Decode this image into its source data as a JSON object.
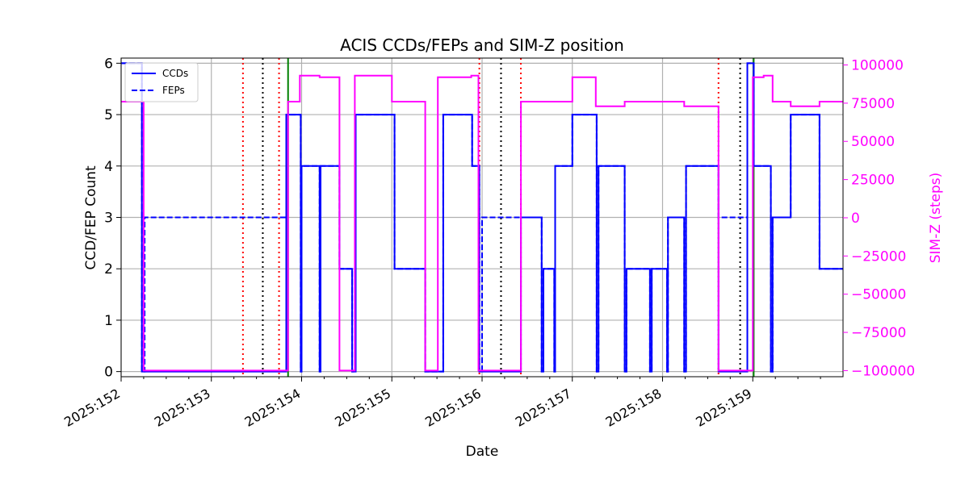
{
  "chart_data": {
    "type": "line",
    "title": "ACIS CCDs/FEPs and SIM-Z position",
    "xlabel": "Date",
    "ylabel": "CCD/FEP Count",
    "y2label": "SIM-Z (steps)",
    "xlim": [
      152.0,
      160.0
    ],
    "ylim": [
      -0.1,
      6.1
    ],
    "y2lim": [
      -104000,
      104500
    ],
    "x_ticks": [
      152,
      153,
      154,
      155,
      156,
      157,
      158,
      159
    ],
    "x_tick_labels": [
      "2025:152",
      "2025:153",
      "2025:154",
      "2025:155",
      "2025:156",
      "2025:157",
      "2025:158",
      "2025:159"
    ],
    "y_ticks": [
      0,
      1,
      2,
      3,
      4,
      5,
      6
    ],
    "y_tick_labels": [
      "0",
      "1",
      "2",
      "3",
      "4",
      "5",
      "6"
    ],
    "y2_ticks": [
      -100000,
      -75000,
      -50000,
      -25000,
      0,
      25000,
      50000,
      75000,
      100000
    ],
    "y2_tick_labels": [
      "−100000",
      "−75000",
      "−50000",
      "−25000",
      "0",
      "25000",
      "50000",
      "75000",
      "100000"
    ],
    "grid": true,
    "legend_position": "top-left",
    "legend": [
      {
        "label": "CCDs",
        "style": "solid",
        "color": "#0000ff"
      },
      {
        "label": "FEPs",
        "style": "dashed",
        "color": "#0000ff"
      }
    ],
    "series": [
      {
        "name": "CCDs",
        "axis": "left",
        "color": "#0000ff",
        "style": "solid",
        "x": [
          152.0,
          152.23,
          152.23,
          153.83,
          153.83,
          153.99,
          153.99,
          154.0,
          154.0,
          154.2,
          154.2,
          154.21,
          154.21,
          154.42,
          154.42,
          154.56,
          154.56,
          154.6,
          154.6,
          155.03,
          155.03,
          155.37,
          155.37,
          155.57,
          155.57,
          155.89,
          155.89,
          155.97,
          155.97,
          156.43,
          156.43,
          156.66,
          156.66,
          156.68,
          156.68,
          156.8,
          156.8,
          156.81,
          156.81,
          157.0,
          157.0,
          157.27,
          157.27,
          157.29,
          157.29,
          157.58,
          157.58,
          157.6,
          157.6,
          157.86,
          157.86,
          157.88,
          157.88,
          158.05,
          158.05,
          158.06,
          158.06,
          158.24,
          158.24,
          158.26,
          158.26,
          158.62,
          158.62,
          158.94,
          158.94,
          159.01,
          159.01,
          159.2,
          159.2,
          159.22,
          159.22,
          159.42,
          159.42,
          159.74,
          159.74,
          160.0
        ],
        "y": [
          6,
          6,
          0,
          0,
          5,
          5,
          0,
          0,
          4,
          4,
          0,
          0,
          4,
          4,
          2,
          2,
          0,
          0,
          5,
          5,
          2,
          2,
          0,
          0,
          5,
          5,
          4,
          4,
          0,
          0,
          3,
          3,
          0,
          0,
          2,
          2,
          0,
          0,
          4,
          4,
          5,
          5,
          0,
          0,
          4,
          4,
          0,
          0,
          2,
          2,
          0,
          0,
          2,
          2,
          0,
          0,
          3,
          3,
          0,
          0,
          4,
          4,
          0,
          0,
          6,
          6,
          4,
          4,
          0,
          0,
          3,
          3,
          5,
          5,
          2,
          2
        ]
      },
      {
        "name": "FEPs",
        "axis": "left",
        "color": "#0000ff",
        "style": "dashed",
        "x": [
          152.0,
          152.23,
          152.23,
          152.26,
          152.26,
          153.83,
          153.83,
          153.99,
          153.99,
          154.0,
          154.0,
          154.2,
          154.2,
          154.21,
          154.21,
          154.42,
          154.42,
          154.56,
          154.56,
          154.6,
          154.6,
          155.03,
          155.03,
          155.37,
          155.37,
          155.57,
          155.57,
          155.89,
          155.89,
          155.97,
          155.97,
          156.0,
          156.0,
          156.66,
          156.66,
          156.68,
          156.68,
          156.8,
          156.8,
          156.81,
          156.81,
          157.0,
          157.0,
          157.27,
          157.27,
          157.29,
          157.29,
          157.58,
          157.58,
          157.6,
          157.6,
          157.86,
          157.86,
          157.88,
          157.88,
          158.05,
          158.05,
          158.06,
          158.06,
          158.24,
          158.24,
          158.26,
          158.26,
          158.62,
          158.62,
          158.94,
          158.94,
          159.01,
          159.01,
          159.2,
          159.2,
          159.22,
          159.22,
          159.42,
          159.42,
          159.74,
          159.74,
          160.0
        ],
        "y": [
          6,
          6,
          0,
          0,
          3,
          3,
          5,
          5,
          0,
          0,
          4,
          4,
          0,
          0,
          4,
          4,
          2,
          2,
          0,
          0,
          5,
          5,
          2,
          2,
          0,
          0,
          5,
          5,
          4,
          4,
          0,
          0,
          3,
          3,
          0,
          0,
          2,
          2,
          0,
          0,
          4,
          4,
          5,
          5,
          0,
          0,
          4,
          4,
          0,
          0,
          2,
          2,
          0,
          0,
          2,
          2,
          0,
          0,
          3,
          3,
          0,
          0,
          4,
          4,
          3,
          3,
          6,
          6,
          4,
          4,
          0,
          0,
          3,
          3,
          5,
          5,
          2,
          2
        ]
      },
      {
        "name": "SIM-Z",
        "axis": "right",
        "color": "#ff00ff",
        "style": "solid",
        "x": [
          152.0,
          152.25,
          152.25,
          153.85,
          153.85,
          153.98,
          153.98,
          154.2,
          154.2,
          154.42,
          154.42,
          154.59,
          154.59,
          155.0,
          155.0,
          155.37,
          155.37,
          155.51,
          155.51,
          155.88,
          155.88,
          155.96,
          155.96,
          156.43,
          156.43,
          157.0,
          157.0,
          157.26,
          157.26,
          157.58,
          157.58,
          158.24,
          158.24,
          158.62,
          158.62,
          159.0,
          159.0,
          159.12,
          159.12,
          159.22,
          159.22,
          159.42,
          159.42,
          159.74,
          159.74,
          160.0
        ],
        "y": [
          76000,
          76000,
          -100000,
          -100000,
          76000,
          76000,
          93000,
          93000,
          92000,
          92000,
          -100000,
          -100000,
          93000,
          93000,
          76000,
          76000,
          -100000,
          -100000,
          92000,
          92000,
          93000,
          93000,
          -100000,
          -100000,
          76000,
          76000,
          92000,
          92000,
          73000,
          73000,
          76000,
          76000,
          73000,
          73000,
          -100000,
          -100000,
          92000,
          92000,
          93000,
          93000,
          76000,
          76000,
          73000,
          73000,
          76000,
          76000
        ]
      }
    ],
    "vlines": [
      {
        "x": 153.35,
        "color": "#ff0000",
        "style": "dotted"
      },
      {
        "x": 153.57,
        "color": "#000000",
        "style": "dotted"
      },
      {
        "x": 153.75,
        "color": "#ff0000",
        "style": "dotted"
      },
      {
        "x": 153.85,
        "color": "#008000",
        "style": "solid"
      },
      {
        "x": 155.97,
        "color": "#ff0000",
        "style": "dotted"
      },
      {
        "x": 156.21,
        "color": "#000000",
        "style": "dotted"
      },
      {
        "x": 156.43,
        "color": "#ff0000",
        "style": "dotted"
      },
      {
        "x": 158.62,
        "color": "#ff0000",
        "style": "dotted"
      },
      {
        "x": 158.86,
        "color": "#000000",
        "style": "dotted"
      },
      {
        "x": 159.01,
        "color": "#008000",
        "style": "solid"
      }
    ]
  }
}
